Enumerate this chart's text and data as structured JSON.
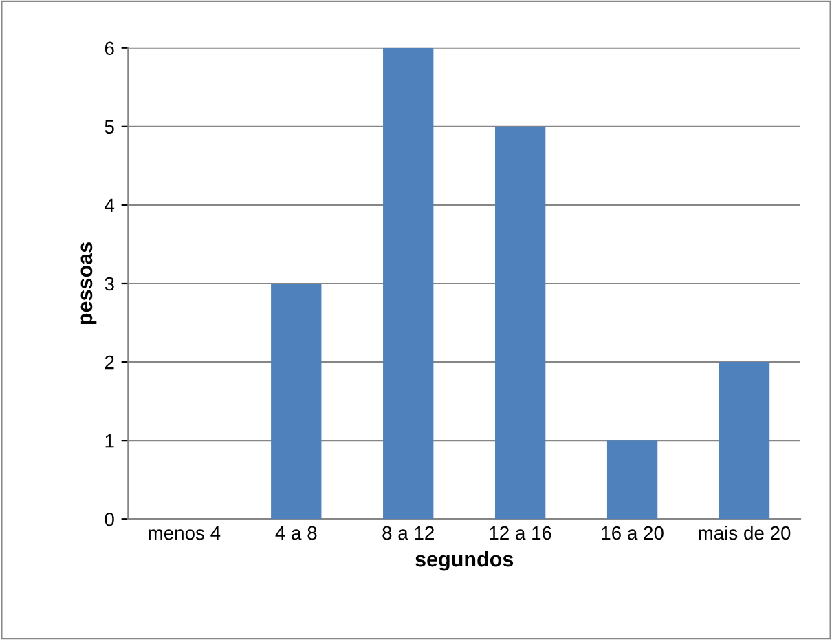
{
  "chart_data": {
    "type": "bar",
    "xlabel": "segundos",
    "ylabel": "pessoas",
    "categories": [
      "menos 4",
      "4 a 8",
      "8 a 12",
      "12 a 16",
      "16 a 20",
      "mais de 20"
    ],
    "values": [
      0,
      3,
      6,
      5,
      1,
      2
    ],
    "color": "#4f81bd",
    "ylim": [
      0,
      6
    ],
    "yticks": [
      0,
      1,
      2,
      3,
      4,
      5,
      6
    ],
    "grid": "y",
    "legend": false
  }
}
